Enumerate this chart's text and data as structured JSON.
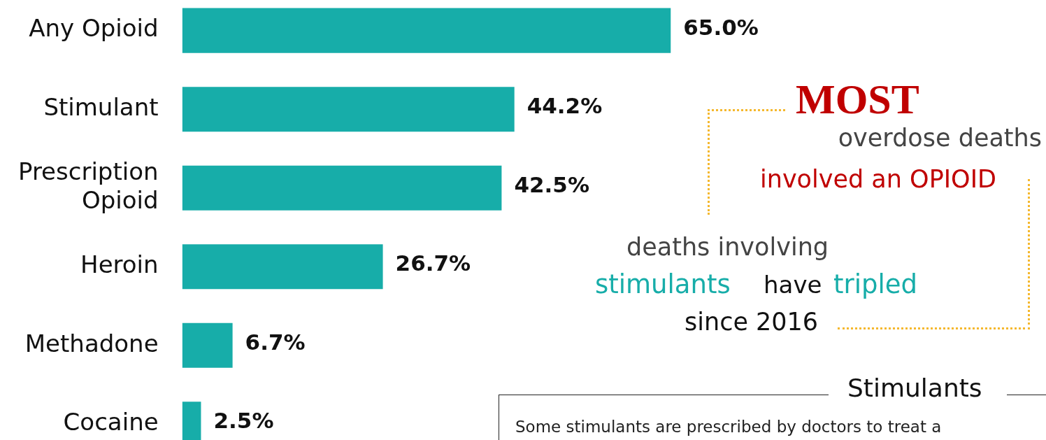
{
  "chart_data": {
    "type": "bar",
    "orientation": "horizontal",
    "categories": [
      "Any Opioid",
      "Stimulant",
      "Prescription Opioid",
      "Heroin",
      "Methadone",
      "Cocaine"
    ],
    "values": [
      65.0,
      44.2,
      42.5,
      26.7,
      6.7,
      2.5
    ],
    "value_labels": [
      "65.0%",
      "44.2%",
      "42.5%",
      "26.7%",
      "6.7%",
      "2.5%"
    ],
    "color": "#17ada9",
    "annotations": [
      "MOST",
      "overdose deaths",
      "involved an OPIOID",
      "deaths involving",
      "stimulants",
      "have",
      "tripled",
      "since 2016",
      "Stimulants",
      "Some stimulants are prescribed by doctors to treat a"
    ]
  }
}
